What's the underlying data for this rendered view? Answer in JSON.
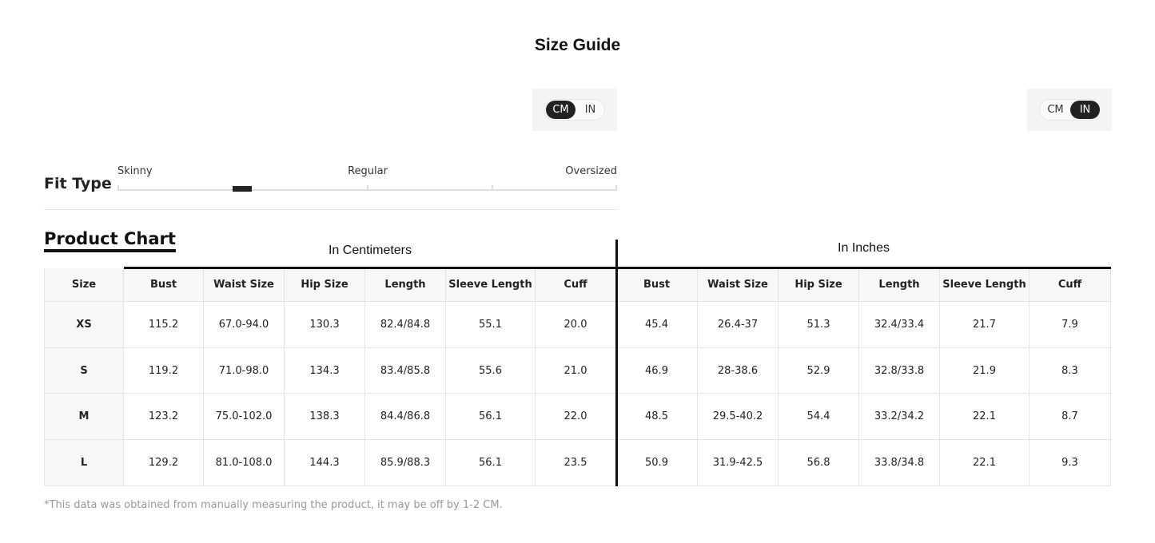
{
  "header": {
    "title": "Size Guide"
  },
  "unit_toggles": [
    {
      "options": [
        "CM",
        "IN"
      ],
      "active_index": 0
    },
    {
      "options": [
        "CM",
        "IN"
      ],
      "active_index": 1
    }
  ],
  "fit_type": {
    "label": "Fit Type",
    "scale": [
      "Skinny",
      "Regular",
      "Oversized"
    ]
  },
  "product_chart": {
    "title": "Product Chart",
    "groups": [
      "In Centimeters",
      "In Inches"
    ],
    "columns": [
      "Size",
      "Bust",
      "Waist Size",
      "Hip Size",
      "Length",
      "Sleeve Length",
      "Cuff",
      "Bust",
      "Waist Size",
      "Hip Size",
      "Length",
      "Sleeve Length",
      "Cuff"
    ],
    "rows": [
      [
        "XS",
        "115.2",
        "67.0-94.0",
        "130.3",
        "82.4/84.8",
        "55.1",
        "20.0",
        "45.4",
        "26.4-37",
        "51.3",
        "32.4/33.4",
        "21.7",
        "7.9"
      ],
      [
        "S",
        "119.2",
        "71.0-98.0",
        "134.3",
        "83.4/85.8",
        "55.6",
        "21.0",
        "46.9",
        "28-38.6",
        "52.9",
        "32.8/33.8",
        "21.9",
        "8.3"
      ],
      [
        "M",
        "123.2",
        "75.0-102.0",
        "138.3",
        "84.4/86.8",
        "56.1",
        "22.0",
        "48.5",
        "29.5-40.2",
        "54.4",
        "33.2/34.2",
        "22.1",
        "8.7"
      ],
      [
        "L",
        "129.2",
        "81.0-108.0",
        "144.3",
        "85.9/88.3",
        "56.1",
        "23.5",
        "50.9",
        "31.9-42.5",
        "56.8",
        "33.8/34.8",
        "22.1",
        "9.3"
      ]
    ]
  },
  "footnote": "*This data was obtained from manually measuring the product, it may be off by 1-2 CM."
}
